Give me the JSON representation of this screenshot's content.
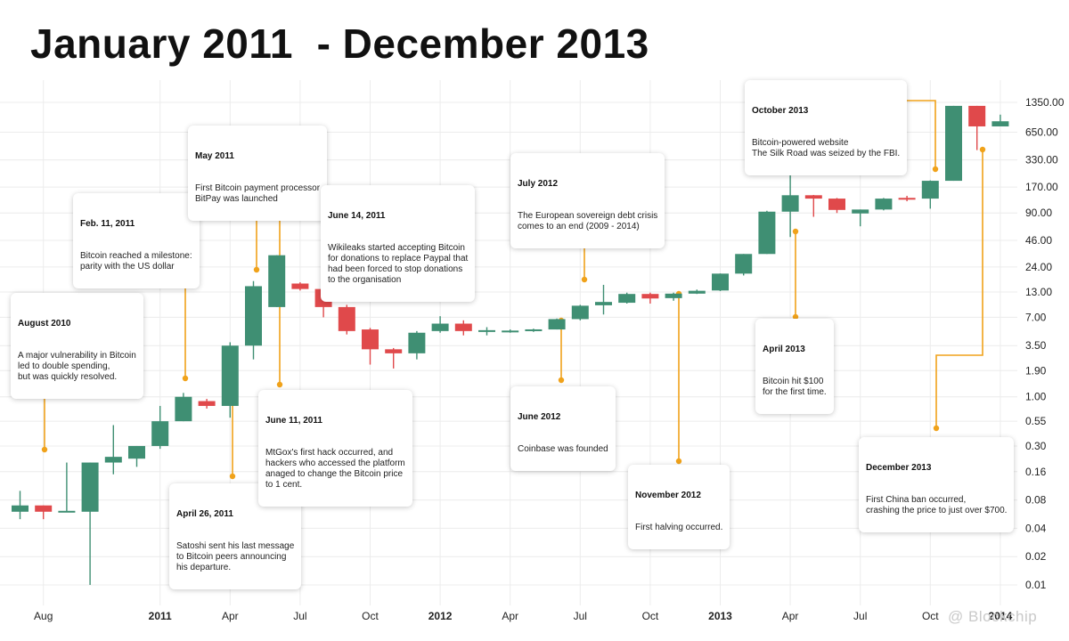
{
  "title": "January 2011  - December 2013",
  "watermark": "@ Blockchip",
  "colors": {
    "up": "#3f8f73",
    "down": "#e0494b",
    "connector": "#f0a21a",
    "grid": "#ececec"
  },
  "chart_data": {
    "type": "candlestick",
    "title": "January 2011  - December 2013",
    "y_scale": "log",
    "y_ticks": [
      "1350.00",
      "650.00",
      "330.00",
      "170.00",
      "90.00",
      "46.00",
      "24.00",
      "13.00",
      "7.00",
      "3.50",
      "1.90",
      "1.00",
      "0.55",
      "0.30",
      "0.16",
      "0.08",
      "0.04",
      "0.02",
      "0.01"
    ],
    "x_ticks": [
      "Aug",
      "2011",
      "Apr",
      "Jul",
      "Oct",
      "2012",
      "Apr",
      "Jul",
      "Oct",
      "2013",
      "Apr",
      "Jul",
      "Oct",
      "2014"
    ],
    "grid": true,
    "candles": [
      {
        "month": "2010-07",
        "open": 0.06,
        "high": 0.1,
        "low": 0.05,
        "close": 0.07
      },
      {
        "month": "2010-08",
        "open": 0.07,
        "high": 0.07,
        "low": 0.05,
        "close": 0.06
      },
      {
        "month": "2010-09",
        "open": 0.06,
        "high": 0.2,
        "low": 0.06,
        "close": 0.06
      },
      {
        "month": "2010-10",
        "open": 0.06,
        "high": 0.2,
        "low": 0.01,
        "close": 0.2
      },
      {
        "month": "2010-11",
        "open": 0.2,
        "high": 0.5,
        "low": 0.15,
        "close": 0.23
      },
      {
        "month": "2010-12",
        "open": 0.22,
        "high": 0.3,
        "low": 0.18,
        "close": 0.3
      },
      {
        "month": "2011-01",
        "open": 0.3,
        "high": 0.8,
        "low": 0.28,
        "close": 0.55
      },
      {
        "month": "2011-02",
        "open": 0.55,
        "high": 1.1,
        "low": 0.55,
        "close": 1.0
      },
      {
        "month": "2011-03",
        "open": 0.9,
        "high": 0.95,
        "low": 0.75,
        "close": 0.8
      },
      {
        "month": "2011-04",
        "open": 0.8,
        "high": 3.8,
        "low": 0.6,
        "close": 3.5
      },
      {
        "month": "2011-05",
        "open": 3.5,
        "high": 17,
        "low": 2.5,
        "close": 15
      },
      {
        "month": "2011-06",
        "open": 9,
        "high": 32,
        "low": 9,
        "close": 32
      },
      {
        "month": "2011-07",
        "open": 16,
        "high": 16.5,
        "low": 13.5,
        "close": 14
      },
      {
        "month": "2011-08",
        "open": 14,
        "high": 14.2,
        "low": 7,
        "close": 9
      },
      {
        "month": "2011-09",
        "open": 9,
        "high": 9.5,
        "low": 4.6,
        "close": 5
      },
      {
        "month": "2011-10",
        "open": 5.2,
        "high": 5.4,
        "low": 2.2,
        "close": 3.2
      },
      {
        "month": "2011-11",
        "open": 3.2,
        "high": 3.3,
        "low": 2,
        "close": 2.9
      },
      {
        "month": "2011-12",
        "open": 2.9,
        "high": 5,
        "low": 2.5,
        "close": 4.8
      },
      {
        "month": "2012-01",
        "open": 5,
        "high": 7.2,
        "low": 4.8,
        "close": 6
      },
      {
        "month": "2012-02",
        "open": 6,
        "high": 6.5,
        "low": 4.5,
        "close": 5
      },
      {
        "month": "2012-03",
        "open": 5,
        "high": 5.5,
        "low": 4.5,
        "close": 5
      },
      {
        "month": "2012-04",
        "open": 4.9,
        "high": 5.2,
        "low": 4.8,
        "close": 5
      },
      {
        "month": "2012-05",
        "open": 5,
        "high": 5.3,
        "low": 4.9,
        "close": 5.2
      },
      {
        "month": "2012-06",
        "open": 5.2,
        "high": 6.8,
        "low": 5.2,
        "close": 6.7
      },
      {
        "month": "2012-07",
        "open": 6.7,
        "high": 9.5,
        "low": 6.5,
        "close": 9.3
      },
      {
        "month": "2012-08",
        "open": 9.4,
        "high": 15.5,
        "low": 7.5,
        "close": 10.2
      },
      {
        "month": "2012-09",
        "open": 10,
        "high": 12.8,
        "low": 9.8,
        "close": 12.4
      },
      {
        "month": "2012-10",
        "open": 12.4,
        "high": 12.8,
        "low": 9.8,
        "close": 11.1
      },
      {
        "month": "2012-11",
        "open": 11.2,
        "high": 12.8,
        "low": 10.5,
        "close": 12.5
      },
      {
        "month": "2012-12",
        "open": 12.5,
        "high": 13.8,
        "low": 12.4,
        "close": 13.4
      },
      {
        "month": "2013-01",
        "open": 13.5,
        "high": 20.5,
        "low": 13.3,
        "close": 20.4
      },
      {
        "month": "2013-02",
        "open": 20.4,
        "high": 33,
        "low": 19.5,
        "close": 33
      },
      {
        "month": "2013-03",
        "open": 33,
        "high": 95,
        "low": 33,
        "close": 93
      },
      {
        "month": "2013-04",
        "open": 93,
        "high": 266,
        "low": 50,
        "close": 139
      },
      {
        "month": "2013-05",
        "open": 139,
        "high": 140,
        "low": 82,
        "close": 128
      },
      {
        "month": "2013-06",
        "open": 128,
        "high": 130,
        "low": 90,
        "close": 97
      },
      {
        "month": "2013-07",
        "open": 89,
        "high": 98,
        "low": 65,
        "close": 98
      },
      {
        "month": "2013-08",
        "open": 98,
        "high": 130,
        "low": 96,
        "close": 128
      },
      {
        "month": "2013-09",
        "open": 128,
        "high": 137,
        "low": 120,
        "close": 127
      },
      {
        "month": "2013-10",
        "open": 128,
        "high": 200,
        "low": 100,
        "close": 198
      },
      {
        "month": "2013-11",
        "open": 198,
        "high": 1240,
        "low": 198,
        "close": 1240
      },
      {
        "month": "2013-12",
        "open": 1240,
        "high": 1240,
        "low": 420,
        "close": 750
      },
      {
        "month": "2014-01",
        "open": 750,
        "high": 1000,
        "low": 760,
        "close": 850
      }
    ]
  },
  "annotations": [
    {
      "id": "aug-2010",
      "date": "August 2010",
      "text": "A major vulnerability in Bitcoin\nled to double spending,\nbut was quickly resolved."
    },
    {
      "id": "feb-2011",
      "date": "Feb. 11, 2011",
      "text": "Bitcoin reached a milestone:\nparity with the US dollar"
    },
    {
      "id": "apr-2011",
      "date": "April 26, 2011",
      "text": "Satoshi sent his last message\nto Bitcoin peers announcing\nhis departure."
    },
    {
      "id": "may-2011",
      "date": "May 2011",
      "text": "First Bitcoin payment processor\nBitPay was launched"
    },
    {
      "id": "jun11-2011",
      "date": "June 11, 2011",
      "text": "MtGox's first hack occurred, and\nhackers who accessed the platform\nanaged to change the Bitcoin price\nto 1 cent."
    },
    {
      "id": "jun14-2011",
      "date": "June 14, 2011",
      "text": "Wikileaks started accepting Bitcoin\nfor donations to replace Paypal that\nhad been forced to stop donations\nto the organisation"
    },
    {
      "id": "jul-2012",
      "date": "July 2012",
      "text": "The European sovereign debt crisis\ncomes to an end (2009 - 2014)"
    },
    {
      "id": "jun-2012",
      "date": "June 2012",
      "text": "Coinbase was founded"
    },
    {
      "id": "nov-2012",
      "date": "November 2012",
      "text": "First halving occurred."
    },
    {
      "id": "apr-2013",
      "date": "April 2013",
      "text": "Bitcoin hit $100\nfor the first time."
    },
    {
      "id": "oct-2013",
      "date": "October 2013",
      "text": "Bitcoin-powered website\nThe Silk Road was seized by the FBI."
    },
    {
      "id": "dec-2013",
      "date": "December 2013",
      "text": "First China ban occurred,\ncrashing the price to just over $700."
    }
  ]
}
